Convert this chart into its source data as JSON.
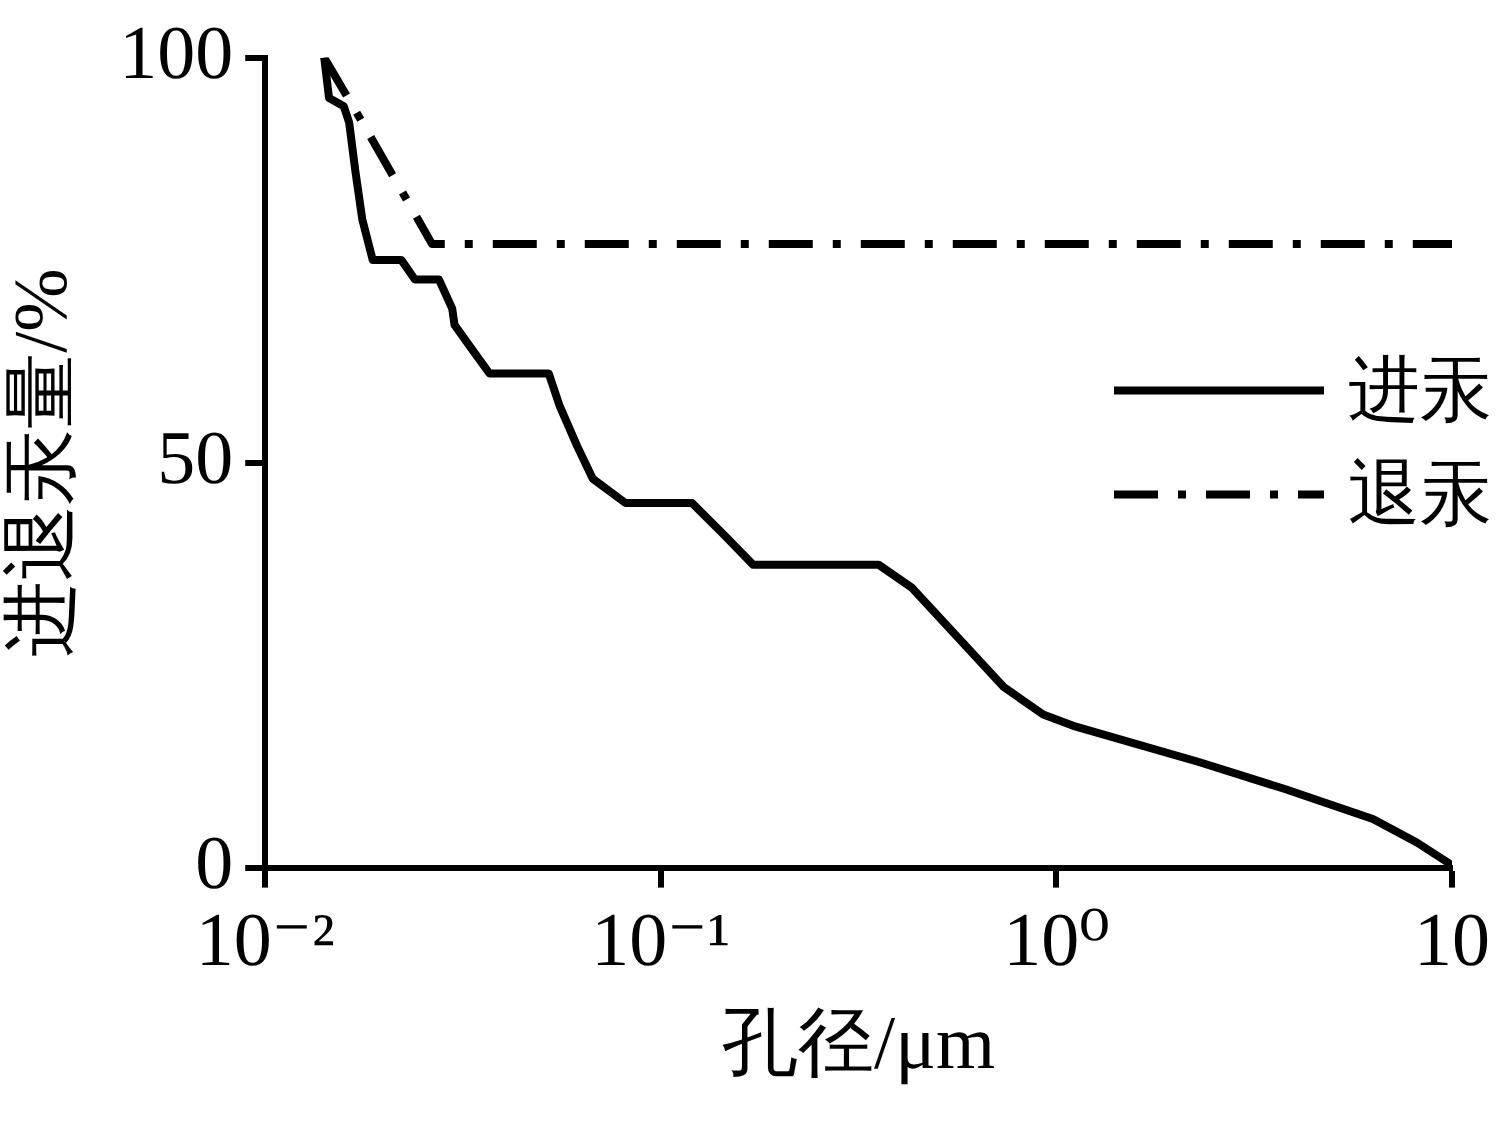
{
  "chart_data": {
    "type": "line",
    "xlabel": "孔径/μm",
    "ylabel": "进退汞量/%",
    "log": "x",
    "xlim": [
      0.01,
      10
    ],
    "xticks": [
      {
        "value": 0.01,
        "label": "10⁻²"
      },
      {
        "value": 0.1,
        "label": "10⁻¹"
      },
      {
        "value": 1,
        "label": "10⁰"
      },
      {
        "value": 10,
        "label": "10"
      }
    ],
    "ylim": [
      0,
      100
    ],
    "yticks": [
      0,
      50,
      100
    ],
    "grid": false,
    "legend": "right",
    "marker": "none",
    "series": [
      {
        "name": "进汞",
        "color": "#000000",
        "line_style": "solid",
        "x": [
          0.0141,
          0.0145,
          0.0158,
          0.0163,
          0.0169,
          0.0176,
          0.0187,
          0.0221,
          0.0239,
          0.0275,
          0.0297,
          0.0301,
          0.0333,
          0.0369,
          0.0521,
          0.0555,
          0.0615,
          0.0673,
          0.0815,
          0.12,
          0.145,
          0.171,
          0.355,
          0.43,
          0.736,
          0.926,
          1.12,
          2.27,
          3.78,
          6.31,
          8.15,
          10
        ],
        "values": [
          100,
          95,
          94,
          92,
          86,
          80,
          75,
          75,
          72.6,
          72.6,
          69,
          67,
          64,
          61,
          61,
          57,
          52,
          48,
          45,
          45,
          41,
          37.4,
          37.4,
          34.6,
          22.3,
          18.9,
          17.4,
          13.1,
          9.7,
          6,
          3.1,
          0.3
        ]
      },
      {
        "name": "退汞",
        "color": "#000000",
        "line_style": "dashed",
        "x": [
          0.0141,
          0.0176,
          0.0264,
          10
        ],
        "values": [
          100,
          92,
          77,
          77
        ]
      }
    ]
  }
}
